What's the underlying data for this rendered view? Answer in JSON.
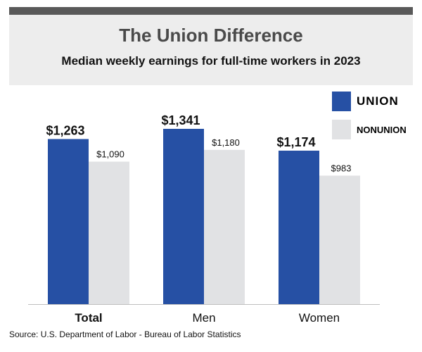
{
  "chart_data": {
    "type": "bar",
    "title": "The Union Difference",
    "subtitle": "Median weekly earnings for full-time workers in 2023",
    "categories": [
      "Total",
      "Men",
      "Women"
    ],
    "series": [
      {
        "name": "UNION",
        "values": [
          1263,
          1341,
          1174
        ],
        "labels": [
          "$1,263",
          "$1,341",
          "$1,174"
        ],
        "color": "#2650a4"
      },
      {
        "name": "NONUNION",
        "values": [
          1090,
          1180,
          983
        ],
        "labels": [
          "$1,090",
          "$1,180",
          "$983"
        ],
        "color": "#e1e2e4"
      }
    ],
    "ylim": [
      0,
      1341
    ],
    "grid": false,
    "legend_position": "top-right",
    "source": "Source: U.S. Department of Labor - Bureau of Labor Statistics"
  }
}
